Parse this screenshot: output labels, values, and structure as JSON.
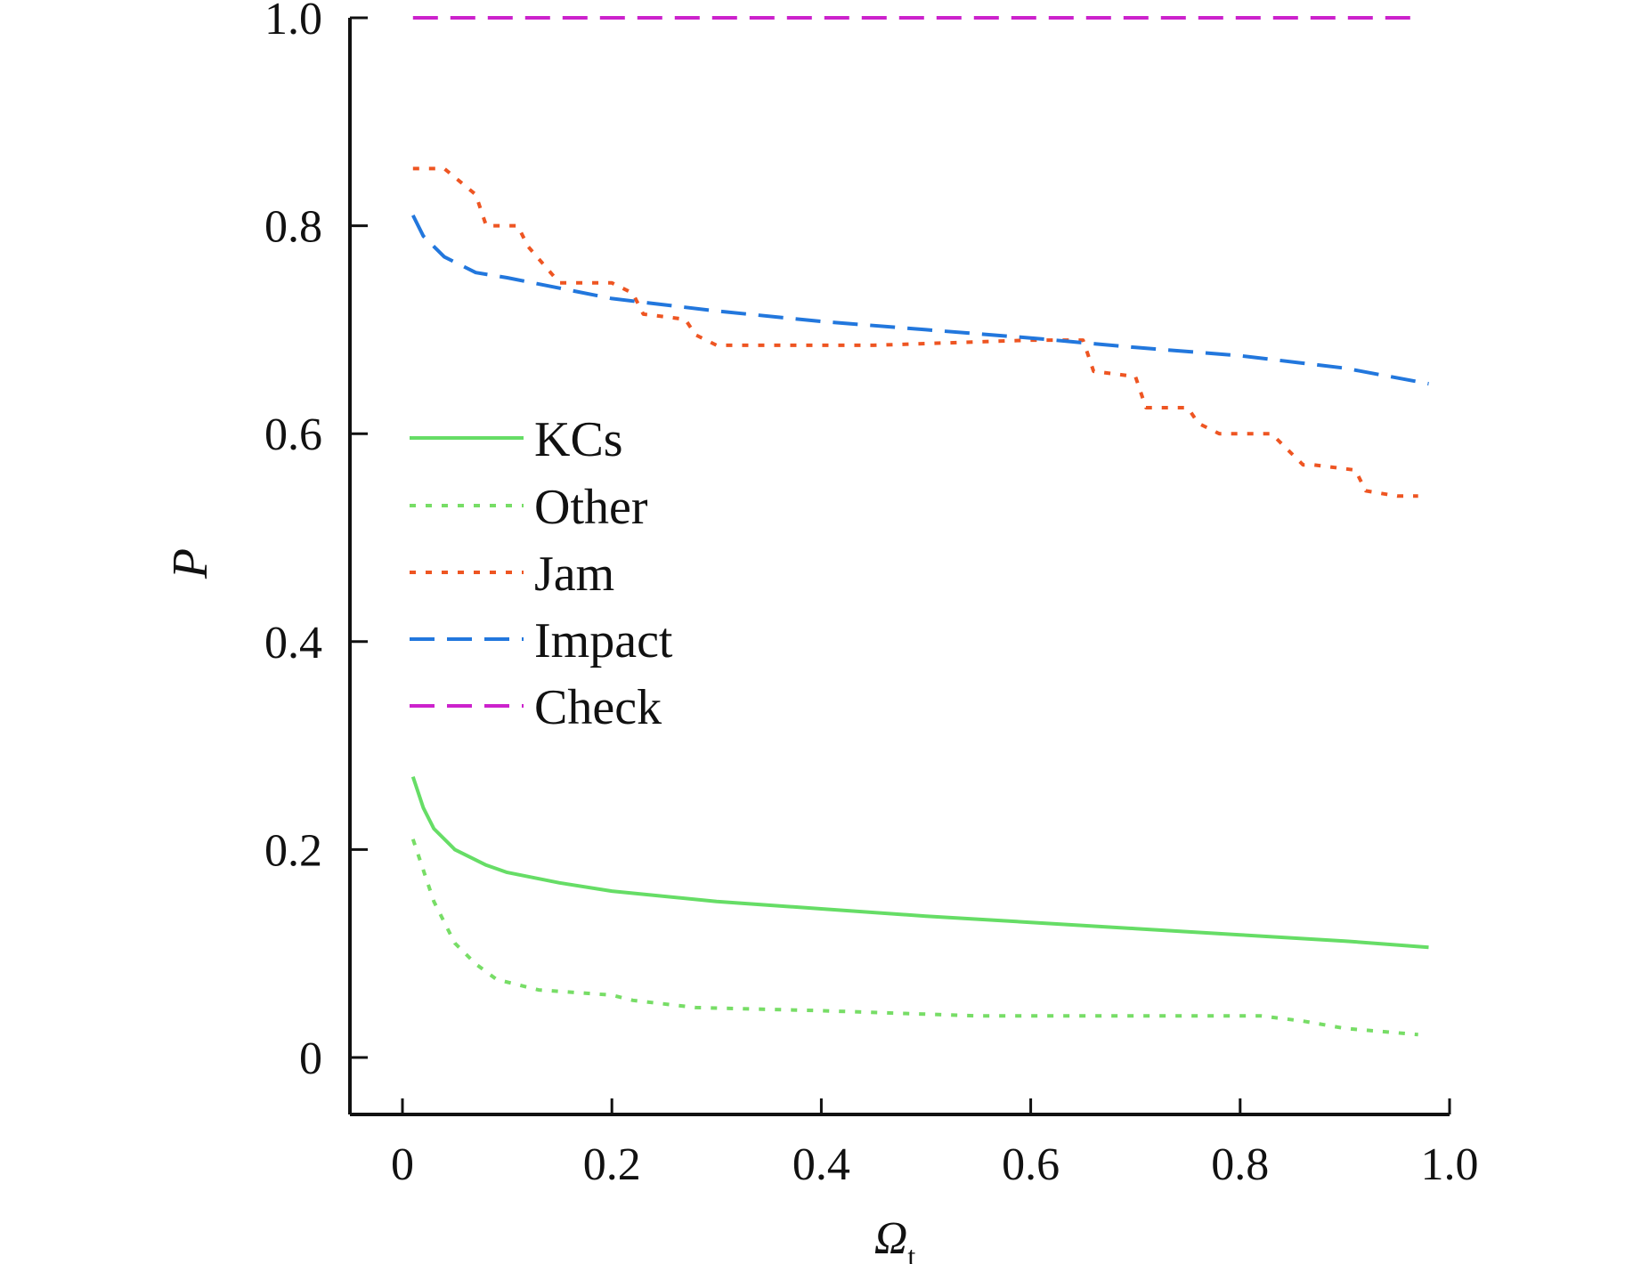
{
  "chart_data": {
    "type": "line",
    "title": "",
    "xlabel": "Ω",
    "xlabel_sub": "t",
    "ylabel": "P",
    "xlim": [
      -0.05,
      1.0
    ],
    "ylim": [
      -0.05,
      1.0
    ],
    "xticks": [
      0,
      0.2,
      0.4,
      0.6,
      0.8,
      1.0
    ],
    "xtick_labels": [
      "0",
      "0.2",
      "0.4",
      "0.6",
      "0.8",
      "1.0"
    ],
    "yticks": [
      0,
      0.2,
      0.4,
      0.6,
      0.8,
      1.0
    ],
    "ytick_labels": [
      "0",
      "0.2",
      "0.4",
      "0.6",
      "0.8",
      "1.0"
    ],
    "grid": false,
    "legend_position": "center-left",
    "series": [
      {
        "name": "KCs",
        "color": "#66dd66",
        "dash": "solid",
        "x": [
          0.01,
          0.02,
          0.03,
          0.05,
          0.08,
          0.1,
          0.15,
          0.2,
          0.3,
          0.4,
          0.5,
          0.6,
          0.7,
          0.8,
          0.9,
          0.98
        ],
        "y": [
          0.27,
          0.24,
          0.22,
          0.2,
          0.185,
          0.178,
          0.168,
          0.16,
          0.15,
          0.143,
          0.136,
          0.13,
          0.124,
          0.118,
          0.112,
          0.106
        ]
      },
      {
        "name": "Other",
        "color": "#77dd66",
        "dash": "dotted",
        "x": [
          0.01,
          0.03,
          0.05,
          0.07,
          0.09,
          0.11,
          0.13,
          0.2,
          0.22,
          0.28,
          0.4,
          0.55,
          0.7,
          0.82,
          0.86,
          0.9,
          0.97
        ],
        "y": [
          0.21,
          0.15,
          0.11,
          0.09,
          0.075,
          0.07,
          0.065,
          0.06,
          0.055,
          0.048,
          0.045,
          0.04,
          0.04,
          0.04,
          0.035,
          0.028,
          0.022
        ]
      },
      {
        "name": "Jam",
        "color": "#ee5522",
        "dash": "dotted",
        "x": [
          0.01,
          0.04,
          0.07,
          0.08,
          0.11,
          0.12,
          0.15,
          0.2,
          0.22,
          0.23,
          0.27,
          0.28,
          0.3,
          0.45,
          0.6,
          0.65,
          0.66,
          0.7,
          0.71,
          0.75,
          0.76,
          0.78,
          0.79,
          0.83,
          0.84,
          0.86,
          0.87,
          0.91,
          0.92,
          0.95,
          0.97
        ],
        "y": [
          0.855,
          0.855,
          0.83,
          0.8,
          0.8,
          0.78,
          0.745,
          0.745,
          0.735,
          0.715,
          0.71,
          0.695,
          0.685,
          0.685,
          0.69,
          0.69,
          0.66,
          0.655,
          0.625,
          0.625,
          0.61,
          0.6,
          0.6,
          0.6,
          0.59,
          0.57,
          0.57,
          0.565,
          0.545,
          0.54,
          0.54
        ]
      },
      {
        "name": "Impact",
        "color": "#2277dd",
        "dash": "dashed",
        "x": [
          0.01,
          0.02,
          0.04,
          0.07,
          0.1,
          0.15,
          0.2,
          0.3,
          0.4,
          0.5,
          0.6,
          0.7,
          0.8,
          0.9,
          0.98
        ],
        "y": [
          0.81,
          0.79,
          0.77,
          0.755,
          0.75,
          0.74,
          0.73,
          0.718,
          0.708,
          0.7,
          0.692,
          0.683,
          0.675,
          0.663,
          0.648
        ]
      },
      {
        "name": "Check",
        "color": "#cc22cc",
        "dash": "dashed",
        "x": [
          0.01,
          0.97
        ],
        "y": [
          1.0,
          1.0
        ]
      }
    ]
  }
}
